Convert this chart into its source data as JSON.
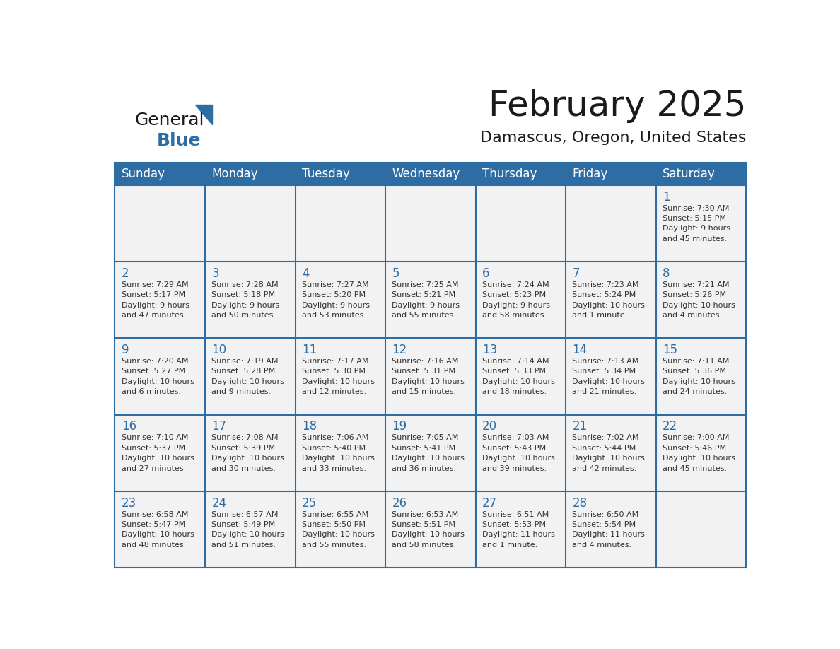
{
  "title": "February 2025",
  "subtitle": "Damascus, Oregon, United States",
  "header_bg": "#2E6DA4",
  "header_text_color": "#FFFFFF",
  "cell_bg": "#F2F2F2",
  "day_number_color": "#2E6DA4",
  "info_text_color": "#333333",
  "border_color": "#2E6DA4",
  "days_of_week": [
    "Sunday",
    "Monday",
    "Tuesday",
    "Wednesday",
    "Thursday",
    "Friday",
    "Saturday"
  ],
  "weeks": [
    [
      {
        "day": "",
        "info": ""
      },
      {
        "day": "",
        "info": ""
      },
      {
        "day": "",
        "info": ""
      },
      {
        "day": "",
        "info": ""
      },
      {
        "day": "",
        "info": ""
      },
      {
        "day": "",
        "info": ""
      },
      {
        "day": "1",
        "info": "Sunrise: 7:30 AM\nSunset: 5:15 PM\nDaylight: 9 hours\nand 45 minutes."
      }
    ],
    [
      {
        "day": "2",
        "info": "Sunrise: 7:29 AM\nSunset: 5:17 PM\nDaylight: 9 hours\nand 47 minutes."
      },
      {
        "day": "3",
        "info": "Sunrise: 7:28 AM\nSunset: 5:18 PM\nDaylight: 9 hours\nand 50 minutes."
      },
      {
        "day": "4",
        "info": "Sunrise: 7:27 AM\nSunset: 5:20 PM\nDaylight: 9 hours\nand 53 minutes."
      },
      {
        "day": "5",
        "info": "Sunrise: 7:25 AM\nSunset: 5:21 PM\nDaylight: 9 hours\nand 55 minutes."
      },
      {
        "day": "6",
        "info": "Sunrise: 7:24 AM\nSunset: 5:23 PM\nDaylight: 9 hours\nand 58 minutes."
      },
      {
        "day": "7",
        "info": "Sunrise: 7:23 AM\nSunset: 5:24 PM\nDaylight: 10 hours\nand 1 minute."
      },
      {
        "day": "8",
        "info": "Sunrise: 7:21 AM\nSunset: 5:26 PM\nDaylight: 10 hours\nand 4 minutes."
      }
    ],
    [
      {
        "day": "9",
        "info": "Sunrise: 7:20 AM\nSunset: 5:27 PM\nDaylight: 10 hours\nand 6 minutes."
      },
      {
        "day": "10",
        "info": "Sunrise: 7:19 AM\nSunset: 5:28 PM\nDaylight: 10 hours\nand 9 minutes."
      },
      {
        "day": "11",
        "info": "Sunrise: 7:17 AM\nSunset: 5:30 PM\nDaylight: 10 hours\nand 12 minutes."
      },
      {
        "day": "12",
        "info": "Sunrise: 7:16 AM\nSunset: 5:31 PM\nDaylight: 10 hours\nand 15 minutes."
      },
      {
        "day": "13",
        "info": "Sunrise: 7:14 AM\nSunset: 5:33 PM\nDaylight: 10 hours\nand 18 minutes."
      },
      {
        "day": "14",
        "info": "Sunrise: 7:13 AM\nSunset: 5:34 PM\nDaylight: 10 hours\nand 21 minutes."
      },
      {
        "day": "15",
        "info": "Sunrise: 7:11 AM\nSunset: 5:36 PM\nDaylight: 10 hours\nand 24 minutes."
      }
    ],
    [
      {
        "day": "16",
        "info": "Sunrise: 7:10 AM\nSunset: 5:37 PM\nDaylight: 10 hours\nand 27 minutes."
      },
      {
        "day": "17",
        "info": "Sunrise: 7:08 AM\nSunset: 5:39 PM\nDaylight: 10 hours\nand 30 minutes."
      },
      {
        "day": "18",
        "info": "Sunrise: 7:06 AM\nSunset: 5:40 PM\nDaylight: 10 hours\nand 33 minutes."
      },
      {
        "day": "19",
        "info": "Sunrise: 7:05 AM\nSunset: 5:41 PM\nDaylight: 10 hours\nand 36 minutes."
      },
      {
        "day": "20",
        "info": "Sunrise: 7:03 AM\nSunset: 5:43 PM\nDaylight: 10 hours\nand 39 minutes."
      },
      {
        "day": "21",
        "info": "Sunrise: 7:02 AM\nSunset: 5:44 PM\nDaylight: 10 hours\nand 42 minutes."
      },
      {
        "day": "22",
        "info": "Sunrise: 7:00 AM\nSunset: 5:46 PM\nDaylight: 10 hours\nand 45 minutes."
      }
    ],
    [
      {
        "day": "23",
        "info": "Sunrise: 6:58 AM\nSunset: 5:47 PM\nDaylight: 10 hours\nand 48 minutes."
      },
      {
        "day": "24",
        "info": "Sunrise: 6:57 AM\nSunset: 5:49 PM\nDaylight: 10 hours\nand 51 minutes."
      },
      {
        "day": "25",
        "info": "Sunrise: 6:55 AM\nSunset: 5:50 PM\nDaylight: 10 hours\nand 55 minutes."
      },
      {
        "day": "26",
        "info": "Sunrise: 6:53 AM\nSunset: 5:51 PM\nDaylight: 10 hours\nand 58 minutes."
      },
      {
        "day": "27",
        "info": "Sunrise: 6:51 AM\nSunset: 5:53 PM\nDaylight: 11 hours\nand 1 minute."
      },
      {
        "day": "28",
        "info": "Sunrise: 6:50 AM\nSunset: 5:54 PM\nDaylight: 11 hours\nand 4 minutes."
      },
      {
        "day": "",
        "info": ""
      }
    ]
  ],
  "logo_text1": "General",
  "logo_text2": "Blue",
  "logo_color1": "#1a1a1a",
  "logo_color2": "#2E6DA4",
  "logo_triangle_color": "#2E6DA4"
}
